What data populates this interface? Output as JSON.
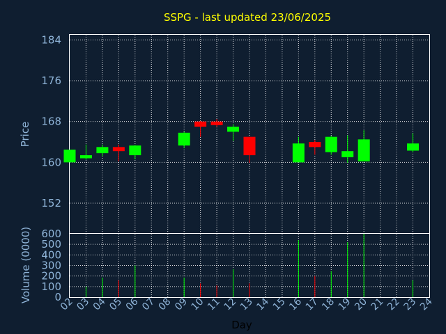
{
  "chart_data": [
    {
      "type": "candlestick",
      "title": "SSPG - last updated 23/06/2025",
      "ylabel": "Price",
      "ylim": [
        146,
        185
      ],
      "yticks": [
        152,
        160,
        168,
        176,
        184
      ],
      "grid": true,
      "colors": {
        "up": "#00ff00",
        "down": "#ff0000"
      },
      "x": [
        "02",
        "03",
        "04",
        "05",
        "06",
        "07",
        "08",
        "09",
        "10",
        "11",
        "12",
        "13",
        "14",
        "15",
        "16",
        "17",
        "18",
        "19",
        "20",
        "21",
        "22",
        "23",
        "24"
      ],
      "candles": [
        {
          "day": "02",
          "open": 160.0,
          "close": 162.5,
          "high": 162.5,
          "low": 160.0
        },
        {
          "day": "03",
          "open": 160.8,
          "close": 161.4,
          "high": 163.5,
          "low": 160.5
        },
        {
          "day": "04",
          "open": 161.8,
          "close": 163.0,
          "high": 163.5,
          "low": 161.2
        },
        {
          "day": "05",
          "open": 163.0,
          "close": 162.2,
          "high": 163.5,
          "low": 160.2
        },
        {
          "day": "06",
          "open": 161.4,
          "close": 163.3,
          "high": 163.4,
          "low": 160.6
        },
        {
          "day": "09",
          "open": 163.3,
          "close": 165.8,
          "high": 166.0,
          "low": 162.8
        },
        {
          "day": "10",
          "open": 168.0,
          "close": 167.0,
          "high": 168.1,
          "low": 165.0
        },
        {
          "day": "11",
          "open": 168.0,
          "close": 167.3,
          "high": 168.5,
          "low": 167.0
        },
        {
          "day": "12",
          "open": 166.0,
          "close": 167.0,
          "high": 167.5,
          "low": 164.2
        },
        {
          "day": "13",
          "open": 165.0,
          "close": 161.4,
          "high": 165.0,
          "low": 159.9
        },
        {
          "day": "16",
          "open": 160.0,
          "close": 163.7,
          "high": 165.0,
          "low": 160.0
        },
        {
          "day": "17",
          "open": 164.0,
          "close": 163.0,
          "high": 164.4,
          "low": 161.5
        },
        {
          "day": "18",
          "open": 162.0,
          "close": 165.0,
          "high": 165.2,
          "low": 161.5
        },
        {
          "day": "19",
          "open": 161.0,
          "close": 162.2,
          "high": 165.3,
          "low": 159.9
        },
        {
          "day": "20",
          "open": 160.2,
          "close": 164.5,
          "high": 166.3,
          "low": 160.2
        },
        {
          "day": "23",
          "open": 162.3,
          "close": 163.7,
          "high": 165.7,
          "low": 162.0
        }
      ]
    },
    {
      "type": "bar",
      "ylabel": "Volume (0000)",
      "xlabel": "Day",
      "ylim": [
        0,
        600
      ],
      "yticks": [
        0,
        100,
        200,
        300,
        400,
        500,
        600
      ],
      "grid": true,
      "x": [
        "02",
        "03",
        "04",
        "05",
        "06",
        "07",
        "08",
        "09",
        "10",
        "11",
        "12",
        "13",
        "14",
        "15",
        "16",
        "17",
        "18",
        "19",
        "20",
        "21",
        "22",
        "23",
        "24"
      ],
      "volumes": [
        {
          "day": "03",
          "value": 100,
          "color": "#00ff00"
        },
        {
          "day": "04",
          "value": 185,
          "color": "#00ff00"
        },
        {
          "day": "05",
          "value": 160,
          "color": "#ff0000"
        },
        {
          "day": "06",
          "value": 300,
          "color": "#00ff00"
        },
        {
          "day": "09",
          "value": 185,
          "color": "#00ff00"
        },
        {
          "day": "10",
          "value": 130,
          "color": "#ff0000"
        },
        {
          "day": "11",
          "value": 110,
          "color": "#ff0000"
        },
        {
          "day": "12",
          "value": 265,
          "color": "#00ff00"
        },
        {
          "day": "13",
          "value": 130,
          "color": "#ff0000"
        },
        {
          "day": "16",
          "value": 540,
          "color": "#00ff00"
        },
        {
          "day": "17",
          "value": 200,
          "color": "#ff0000"
        },
        {
          "day": "18",
          "value": 245,
          "color": "#00ff00"
        },
        {
          "day": "19",
          "value": 520,
          "color": "#00ff00"
        },
        {
          "day": "20",
          "value": 600,
          "color": "#00ff00"
        },
        {
          "day": "23",
          "value": 160,
          "color": "#00ff00"
        }
      ]
    }
  ]
}
